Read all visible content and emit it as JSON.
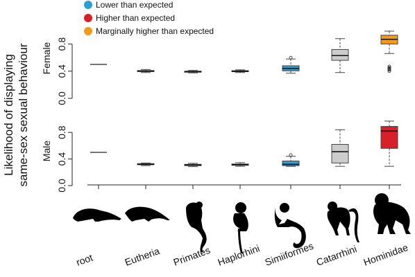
{
  "chart_data": {
    "type": "box",
    "ylabel_lines": [
      "Likelihood of displaying",
      "same-sex sexual behaviour"
    ],
    "categories": [
      "root",
      "Eutheria",
      "Primates",
      "Haplorhini",
      "Simiiformes",
      "Catarrhini",
      "Hominidae"
    ],
    "ylim": [
      0,
      1.0
    ],
    "yticks": [
      "0.0",
      "0.4",
      "0.8"
    ],
    "legend": [
      {
        "label": "Lower than expected",
        "color": "#2a9fd6"
      },
      {
        "label": "Higher than expected",
        "color": "#d81f2a"
      },
      {
        "label": "Marginally higher than expected",
        "color": "#f39a1b"
      }
    ],
    "panels": [
      {
        "name": "Female",
        "boxes": [
          {
            "category": "root",
            "kind": "line",
            "median": 0.5,
            "color": "#ffffff"
          },
          {
            "category": "Eutheria",
            "min": 0.38,
            "q1": 0.395,
            "median": 0.4,
            "q3": 0.41,
            "max": 0.425,
            "color": "#cccccc",
            "outliers": []
          },
          {
            "category": "Primates",
            "min": 0.375,
            "q1": 0.388,
            "median": 0.393,
            "q3": 0.4,
            "max": 0.412,
            "color": "#cccccc",
            "outliers": []
          },
          {
            "category": "Haplorhini",
            "min": 0.38,
            "q1": 0.392,
            "median": 0.4,
            "q3": 0.408,
            "max": 0.42,
            "color": "#cccccc",
            "outliers": []
          },
          {
            "category": "Simiiformes",
            "min": 0.37,
            "q1": 0.405,
            "median": 0.44,
            "q3": 0.48,
            "max": 0.58,
            "color": "#2a9fd6",
            "outliers": [
              0.6
            ]
          },
          {
            "category": "Catarrhini",
            "min": 0.38,
            "q1": 0.56,
            "median": 0.63,
            "q3": 0.72,
            "max": 0.88,
            "color": "#cccccc",
            "outliers": []
          },
          {
            "category": "Hominidae",
            "min": 0.66,
            "q1": 0.8,
            "median": 0.87,
            "q3": 0.93,
            "max": 0.99,
            "color": "#f39a1b",
            "outliers": [
              0.47,
              0.45,
              0.44,
              0.43,
              0.42,
              0.4
            ]
          }
        ]
      },
      {
        "name": "Male",
        "boxes": [
          {
            "category": "root",
            "kind": "line",
            "median": 0.5,
            "color": "#ffffff"
          },
          {
            "category": "Eutheria",
            "min": 0.3,
            "q1": 0.315,
            "median": 0.32,
            "q3": 0.33,
            "max": 0.34,
            "color": "#cccccc",
            "outliers": []
          },
          {
            "category": "Primates",
            "min": 0.285,
            "q1": 0.3,
            "median": 0.31,
            "q3": 0.32,
            "max": 0.335,
            "color": "#2a9fd6",
            "outliers": []
          },
          {
            "category": "Haplorhini",
            "min": 0.29,
            "q1": 0.305,
            "median": 0.315,
            "q3": 0.325,
            "max": 0.345,
            "color": "#2a9fd6",
            "outliers": []
          },
          {
            "category": "Simiiformes",
            "min": 0.29,
            "q1": 0.3,
            "median": 0.32,
            "q3": 0.37,
            "max": 0.44,
            "color": "#2a9fd6",
            "outliers": [
              0.46
            ]
          },
          {
            "category": "Catarrhini",
            "min": 0.29,
            "q1": 0.34,
            "median": 0.51,
            "q3": 0.62,
            "max": 0.84,
            "color": "#cccccc",
            "outliers": []
          },
          {
            "category": "Hominidae",
            "min": 0.29,
            "q1": 0.56,
            "median": 0.82,
            "q3": 0.89,
            "max": 0.97,
            "color": "#d81f2a",
            "outliers": []
          }
        ]
      }
    ]
  }
}
